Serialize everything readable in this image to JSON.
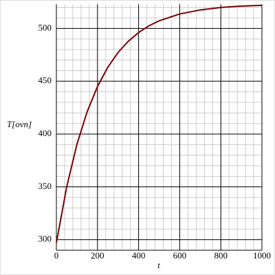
{
  "chart_data": {
    "type": "line",
    "xlabel": "t",
    "ylabel": "T[ovn]",
    "x": [
      0,
      50,
      100,
      150,
      200,
      250,
      300,
      350,
      400,
      450,
      500,
      600,
      700,
      800,
      900,
      1000
    ],
    "series": [
      {
        "color": "#7a0000",
        "values": [
          297,
          349.8,
          390.3,
          421.3,
          445,
          463.2,
          477.2,
          487.9,
          496.1,
          502.4,
          507.2,
          513.7,
          517.5,
          519.8,
          521.1,
          521.9
        ]
      }
    ],
    "xlim": [
      0,
      1000
    ],
    "xticks": [
      0,
      200,
      400,
      600,
      800,
      1000
    ],
    "ylim": [
      290,
      523
    ],
    "yticks": [
      300,
      350,
      400,
      450,
      500
    ],
    "grid": true
  }
}
